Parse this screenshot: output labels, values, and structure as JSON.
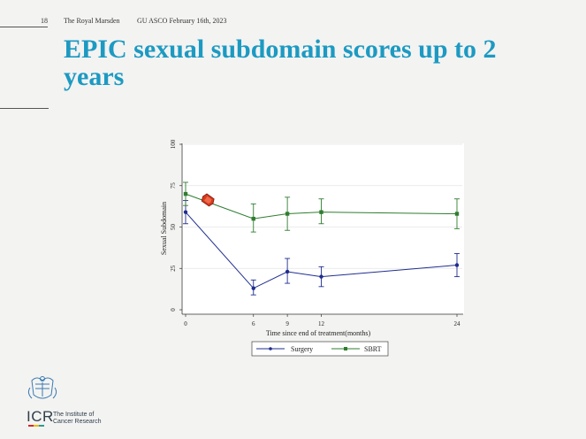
{
  "header": {
    "slide_number": "18",
    "organization": "The Royal Marsden",
    "event": "GU ASCO February 16th, 2023"
  },
  "title": "EPIC sexual subdomain scores up to 2 years",
  "colors": {
    "title": "#1c9ac2",
    "surgery": "#1f2d8f",
    "sbrt": "#2f7d2f",
    "annotation": "#d63a1e"
  },
  "chart_data": {
    "type": "line",
    "xlabel": "Time since end of treatment(months)",
    "ylabel": "Sexual Subdomain",
    "xlim": [
      0,
      24
    ],
    "ylim": [
      0,
      100
    ],
    "x_ticks": [
      0,
      6,
      9,
      12,
      24
    ],
    "y_ticks": [
      0,
      25,
      50,
      75,
      100
    ],
    "grid": true,
    "legend_position": "bottom-center",
    "series": [
      {
        "name": "Surgery",
        "color": "#1f2d8f",
        "marker": "circle",
        "x": [
          0,
          6,
          9,
          12,
          24
        ],
        "y": [
          59,
          13,
          23,
          20,
          27
        ],
        "ci_low": [
          52,
          9,
          16,
          14,
          20
        ],
        "ci_high": [
          66,
          18,
          31,
          26,
          34
        ]
      },
      {
        "name": "SBRT",
        "color": "#2f7d2f",
        "marker": "square",
        "x": [
          0,
          6,
          9,
          12,
          24
        ],
        "y": [
          70,
          55,
          58,
          59,
          58
        ],
        "ci_low": [
          63,
          47,
          48,
          52,
          49
        ],
        "ci_high": [
          77,
          64,
          68,
          67,
          67
        ]
      }
    ]
  },
  "logo": {
    "name": "ICR",
    "line1": "The Institute of",
    "line2": "Cancer Research"
  }
}
